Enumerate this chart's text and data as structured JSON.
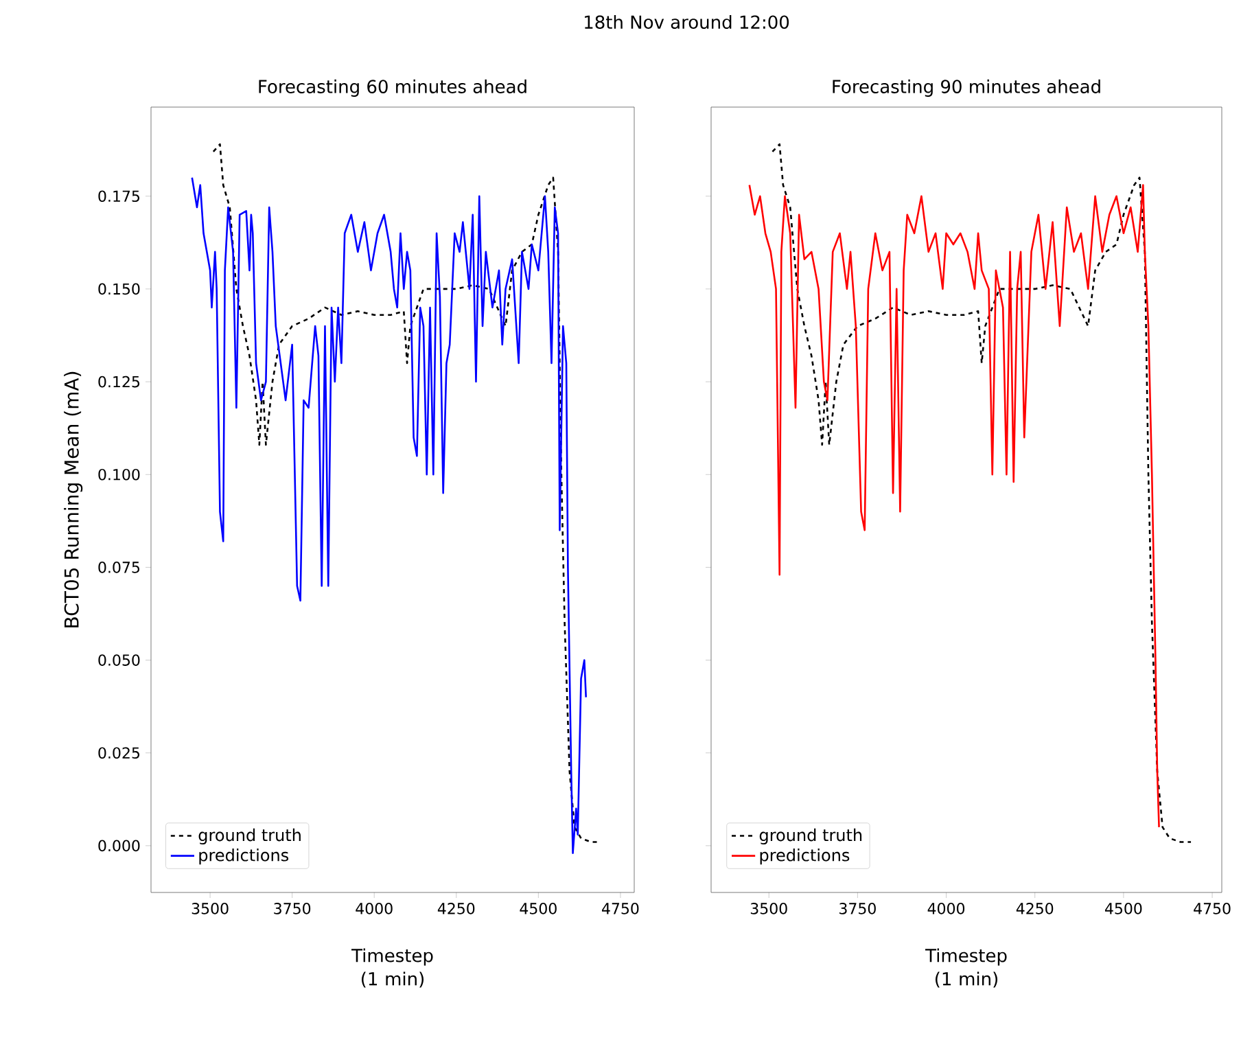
{
  "chart_data": [
    {
      "type": "line",
      "title": "Forecasting 60 minutes ahead",
      "xlabel": "Timestep (1 min)",
      "ylabel": "BCT05 Running Mean (mA)",
      "annotations": [
        "18th Nov around 12:00"
      ],
      "xlim": [
        3320,
        4792
      ],
      "ylim": [
        -0.0126,
        0.199
      ],
      "xticks": [
        3500,
        3750,
        4000,
        4250,
        4500,
        4750
      ],
      "yticks": [
        {
          "value": 0,
          "label": "0.000"
        },
        {
          "value": 0.025,
          "label": "0.025"
        },
        {
          "value": 0.05,
          "label": "0.050"
        },
        {
          "value": 0.075,
          "label": "0.075"
        },
        {
          "value": 0.1,
          "label": "0.100"
        },
        {
          "value": 0.125,
          "label": "0.125"
        },
        {
          "value": 0.15,
          "label": "0.150"
        },
        {
          "value": 0.175,
          "label": "0.175"
        }
      ],
      "legend": "lower left",
      "series": [
        {
          "name": "ground truth",
          "color": "#000000",
          "line_style": "dashed",
          "x": [
            3510,
            3530,
            3540,
            3560,
            3580,
            3600,
            3620,
            3640,
            3650,
            3660,
            3670,
            3690,
            3710,
            3750,
            3800,
            3850,
            3900,
            3950,
            4000,
            4050,
            4090,
            4100,
            4110,
            4150,
            4200,
            4250,
            4300,
            4350,
            4400,
            4420,
            4450,
            4480,
            4500,
            4530,
            4545,
            4560,
            4570,
            4580,
            4595,
            4610,
            4630,
            4660,
            4690
          ],
          "values": [
            0.187,
            0.189,
            0.178,
            0.172,
            0.15,
            0.14,
            0.132,
            0.12,
            0.108,
            0.125,
            0.108,
            0.125,
            0.135,
            0.14,
            0.142,
            0.145,
            0.143,
            0.144,
            0.143,
            0.143,
            0.144,
            0.13,
            0.14,
            0.15,
            0.15,
            0.15,
            0.151,
            0.15,
            0.14,
            0.155,
            0.16,
            0.162,
            0.17,
            0.178,
            0.18,
            0.16,
            0.1,
            0.06,
            0.02,
            0.005,
            0.002,
            0.001,
            0.001
          ]
        },
        {
          "name": "predictions",
          "color": "#0000ff",
          "line_style": "solid",
          "x": [
            3445,
            3460,
            3470,
            3480,
            3490,
            3500,
            3505,
            3515,
            3520,
            3530,
            3540,
            3545,
            3555,
            3570,
            3580,
            3590,
            3610,
            3620,
            3625,
            3630,
            3640,
            3655,
            3670,
            3680,
            3690,
            3700,
            3715,
            3730,
            3750,
            3765,
            3775,
            3785,
            3800,
            3820,
            3830,
            3840,
            3850,
            3860,
            3870,
            3880,
            3890,
            3900,
            3910,
            3930,
            3950,
            3970,
            3990,
            4010,
            4030,
            4050,
            4060,
            4070,
            4080,
            4090,
            4100,
            4110,
            4120,
            4130,
            4140,
            4150,
            4160,
            4170,
            4180,
            4190,
            4200,
            4210,
            4220,
            4230,
            4245,
            4260,
            4270,
            4290,
            4300,
            4310,
            4320,
            4330,
            4340,
            4360,
            4380,
            4390,
            4400,
            4420,
            4440,
            4450,
            4470,
            4480,
            4500,
            4520,
            4530,
            4540,
            4550,
            4560,
            4565,
            4575,
            4585,
            4590,
            4600,
            4605,
            4615,
            4620,
            4630,
            4640,
            4645
          ],
          "values": [
            0.18,
            0.172,
            0.178,
            0.165,
            0.16,
            0.155,
            0.145,
            0.16,
            0.15,
            0.09,
            0.082,
            0.155,
            0.172,
            0.16,
            0.118,
            0.17,
            0.171,
            0.155,
            0.17,
            0.165,
            0.13,
            0.12,
            0.125,
            0.172,
            0.16,
            0.14,
            0.13,
            0.12,
            0.135,
            0.07,
            0.066,
            0.12,
            0.118,
            0.14,
            0.132,
            0.07,
            0.14,
            0.07,
            0.145,
            0.125,
            0.145,
            0.13,
            0.165,
            0.17,
            0.16,
            0.168,
            0.155,
            0.165,
            0.17,
            0.16,
            0.15,
            0.145,
            0.165,
            0.15,
            0.16,
            0.155,
            0.11,
            0.105,
            0.145,
            0.14,
            0.1,
            0.145,
            0.1,
            0.165,
            0.148,
            0.095,
            0.13,
            0.135,
            0.165,
            0.16,
            0.168,
            0.15,
            0.17,
            0.125,
            0.175,
            0.14,
            0.16,
            0.145,
            0.155,
            0.135,
            0.15,
            0.158,
            0.13,
            0.16,
            0.15,
            0.162,
            0.155,
            0.175,
            0.16,
            0.13,
            0.172,
            0.165,
            0.085,
            0.14,
            0.13,
            0.075,
            0.02,
            -0.002,
            0.01,
            0.003,
            0.045,
            0.05,
            0.04
          ]
        }
      ]
    },
    {
      "type": "line",
      "title": "Forecasting 90 minutes ahead",
      "xlabel": "Timestep (1 min)",
      "xlim": [
        3337,
        4777
      ],
      "ylim": [
        -0.0126,
        0.199
      ],
      "xticks": [
        3500,
        3750,
        4000,
        4250,
        4500,
        4750
      ],
      "yticks": [
        {
          "value": 0,
          "label": null
        },
        {
          "value": 0.025,
          "label": null
        },
        {
          "value": 0.05,
          "label": null
        },
        {
          "value": 0.075,
          "label": null
        },
        {
          "value": 0.1,
          "label": null
        },
        {
          "value": 0.125,
          "label": null
        },
        {
          "value": 0.15,
          "label": null
        },
        {
          "value": 0.175,
          "label": null
        }
      ],
      "tick_labels": "x",
      "legend": "lower left",
      "series": [
        {
          "name": "ground truth",
          "color": "#000000",
          "line_style": "dashed",
          "x": [
            3510,
            3530,
            3540,
            3560,
            3580,
            3600,
            3620,
            3640,
            3650,
            3660,
            3670,
            3690,
            3710,
            3750,
            3800,
            3850,
            3900,
            3950,
            4000,
            4050,
            4090,
            4100,
            4110,
            4150,
            4200,
            4250,
            4300,
            4350,
            4400,
            4420,
            4450,
            4480,
            4500,
            4530,
            4545,
            4560,
            4570,
            4580,
            4595,
            4610,
            4630,
            4660,
            4690
          ],
          "values": [
            0.187,
            0.189,
            0.178,
            0.172,
            0.15,
            0.14,
            0.132,
            0.12,
            0.108,
            0.125,
            0.108,
            0.125,
            0.135,
            0.14,
            0.142,
            0.145,
            0.143,
            0.144,
            0.143,
            0.143,
            0.144,
            0.13,
            0.14,
            0.15,
            0.15,
            0.15,
            0.151,
            0.15,
            0.14,
            0.155,
            0.16,
            0.162,
            0.17,
            0.178,
            0.18,
            0.16,
            0.1,
            0.06,
            0.02,
            0.005,
            0.002,
            0.001,
            0.001
          ]
        },
        {
          "name": "predictions",
          "color": "#ff0000",
          "line_style": "solid",
          "x": [
            3445,
            3460,
            3475,
            3490,
            3505,
            3520,
            3530,
            3535,
            3545,
            3560,
            3575,
            3585,
            3600,
            3620,
            3640,
            3655,
            3665,
            3680,
            3700,
            3720,
            3730,
            3745,
            3760,
            3770,
            3780,
            3800,
            3820,
            3840,
            3850,
            3860,
            3870,
            3880,
            3890,
            3910,
            3930,
            3950,
            3970,
            3990,
            4000,
            4020,
            4040,
            4060,
            4080,
            4090,
            4100,
            4120,
            4130,
            4140,
            4160,
            4170,
            4180,
            4190,
            4200,
            4210,
            4220,
            4240,
            4260,
            4280,
            4300,
            4320,
            4340,
            4360,
            4380,
            4400,
            4420,
            4440,
            4460,
            4480,
            4500,
            4520,
            4540,
            4555,
            4560,
            4570,
            4580,
            4590,
            4595,
            4600
          ],
          "values": [
            0.178,
            0.17,
            0.175,
            0.165,
            0.16,
            0.15,
            0.073,
            0.16,
            0.175,
            0.165,
            0.118,
            0.17,
            0.158,
            0.16,
            0.15,
            0.125,
            0.12,
            0.16,
            0.165,
            0.15,
            0.16,
            0.14,
            0.09,
            0.085,
            0.15,
            0.165,
            0.155,
            0.16,
            0.095,
            0.15,
            0.09,
            0.155,
            0.17,
            0.165,
            0.175,
            0.16,
            0.165,
            0.15,
            0.165,
            0.162,
            0.165,
            0.16,
            0.15,
            0.165,
            0.155,
            0.15,
            0.1,
            0.155,
            0.145,
            0.1,
            0.16,
            0.098,
            0.15,
            0.16,
            0.11,
            0.16,
            0.17,
            0.15,
            0.168,
            0.14,
            0.172,
            0.16,
            0.165,
            0.15,
            0.175,
            0.16,
            0.17,
            0.175,
            0.165,
            0.172,
            0.16,
            0.178,
            0.16,
            0.14,
            0.1,
            0.05,
            0.02,
            0.005
          ]
        }
      ]
    }
  ]
}
